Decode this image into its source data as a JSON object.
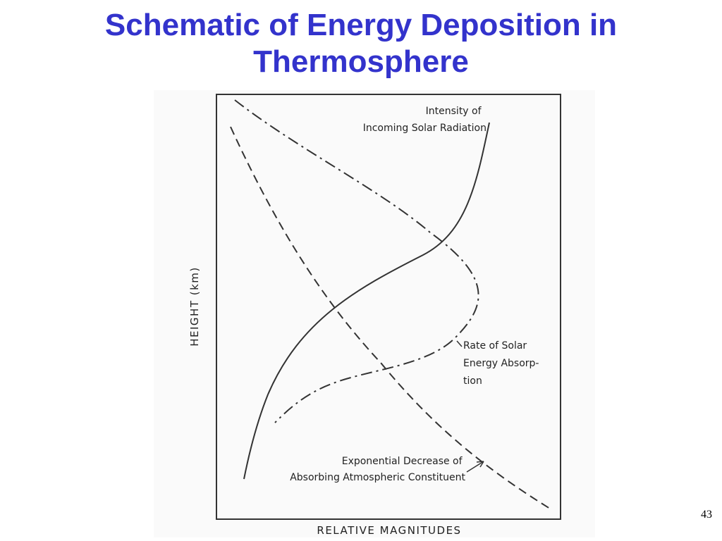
{
  "slide": {
    "title_line1": "Schematic of Energy Deposition in",
    "title_line2": "Thermosphere",
    "page_number": "43",
    "title_color": "#3333cc"
  },
  "figure": {
    "axis_x_label": "RELATIVE MAGNITUDES",
    "axis_y_label": "HEIGHT (km)",
    "curves": [
      {
        "id": "incoming-solar-radiation",
        "style": "solid",
        "label_lines": [
          "Intensity of",
          "Incoming Solar Radiation"
        ]
      },
      {
        "id": "rate-of-solar-energy-absorption",
        "style": "dash-dot",
        "label_lines": [
          "Rate of Solar",
          "Energy Absorp-",
          "tion"
        ]
      },
      {
        "id": "absorbing-constituent",
        "style": "dashed",
        "label_lines": [
          "Exponential Decrease of",
          "Absorbing Atmospheric Constituent"
        ]
      }
    ]
  }
}
